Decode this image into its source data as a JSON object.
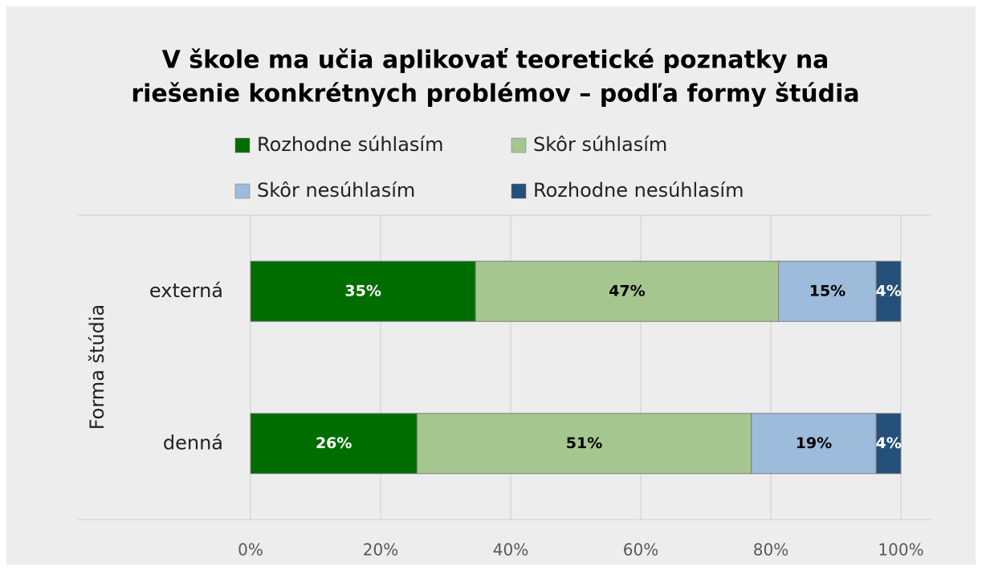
{
  "chart_data": {
    "type": "stacked_barh",
    "title": [
      "V škole ma učia aplikovať teoretické poznatky na",
      "riešenie konkrétnych problémov – podľa formy štúdia"
    ],
    "y_label": "Forma štúdia",
    "categories": [
      "externá",
      "denná"
    ],
    "series": [
      {
        "name": "Rozhodne súhlasím",
        "color": "#006d00",
        "values": [
          34.6,
          25.6
        ],
        "value_labels": [
          "35%",
          "26%"
        ]
      },
      {
        "name": "Skôr súhlasím",
        "color": "#a6c690",
        "values": [
          46.6,
          51.4
        ],
        "value_labels": [
          "47%",
          "51%"
        ]
      },
      {
        "name": "Skôr nesúhlasím",
        "color": "#9dbbda",
        "values": [
          15.0,
          19.2
        ],
        "value_labels": [
          "15%",
          "19%"
        ]
      },
      {
        "name": "Rozhodne nesúhlasím",
        "color": "#245079",
        "values": [
          3.8,
          3.8
        ],
        "value_labels": [
          "4%",
          "4%"
        ]
      }
    ],
    "xlim": [
      0,
      100
    ],
    "xticks": [
      {
        "value": 0,
        "label": "0%"
      },
      {
        "value": 20,
        "label": "20%"
      },
      {
        "value": 40,
        "label": "40%"
      },
      {
        "value": 60,
        "label": "60%"
      },
      {
        "value": 80,
        "label": "80%"
      },
      {
        "value": 100,
        "label": "100%"
      }
    ],
    "grid": true
  }
}
